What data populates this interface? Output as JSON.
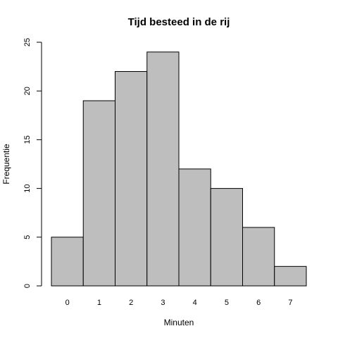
{
  "chart_data": {
    "type": "bar",
    "title": "Tijd besteed in de rij",
    "xlabel": "Minuten",
    "ylabel": "Frequentie",
    "categories": [
      "0",
      "1",
      "2",
      "3",
      "4",
      "5",
      "6",
      "7"
    ],
    "values": [
      5,
      19,
      22,
      24,
      12,
      10,
      6,
      2
    ],
    "ylim": [
      0,
      25
    ],
    "yticks": [
      "0",
      "5",
      "10",
      "15",
      "20",
      "25"
    ],
    "grid": false,
    "bar_color": "#bebebe",
    "edge_color": "#000000"
  }
}
